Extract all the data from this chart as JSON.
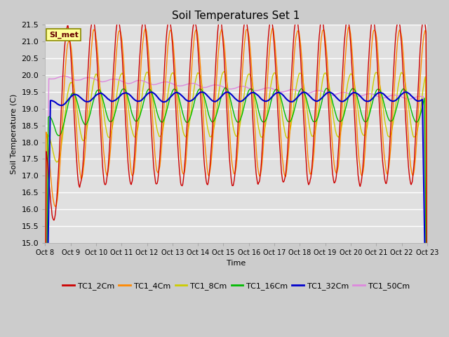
{
  "title": "Soil Temperatures Set 1",
  "xlabel": "Time",
  "ylabel": "Soil Temperature (C)",
  "ylim": [
    15.0,
    21.5
  ],
  "annotation": "SI_met",
  "series_colors": {
    "TC1_2Cm": "#cc0000",
    "TC1_4Cm": "#ff8800",
    "TC1_8Cm": "#cccc00",
    "TC1_16Cm": "#00bb00",
    "TC1_32Cm": "#0000cc",
    "TC1_50Cm": "#dd88dd"
  },
  "legend_colors": [
    "#cc0000",
    "#ff8800",
    "#cccc00",
    "#00bb00",
    "#0000cc",
    "#dd88dd"
  ],
  "legend_labels": [
    "TC1_2Cm",
    "TC1_4Cm",
    "TC1_8Cm",
    "TC1_16Cm",
    "TC1_32Cm",
    "TC1_50Cm"
  ],
  "tick_labels": [
    "Oct 8",
    "Oct 9",
    "Oct 10",
    "Oct 11",
    "Oct 12",
    "Oct 13",
    "Oct 14",
    "Oct 15",
    "Oct 16",
    "Oct 17",
    "Oct 18",
    "Oct 19",
    "Oct 20",
    "Oct 21",
    "Oct 22",
    "Oct 23"
  ],
  "fig_width": 6.4,
  "fig_height": 4.8,
  "dpi": 100,
  "bg_color": "#cccccc",
  "plot_bg_color": "#e0e0e0",
  "title_fontsize": 11,
  "axis_fontsize": 8,
  "legend_fontsize": 8
}
